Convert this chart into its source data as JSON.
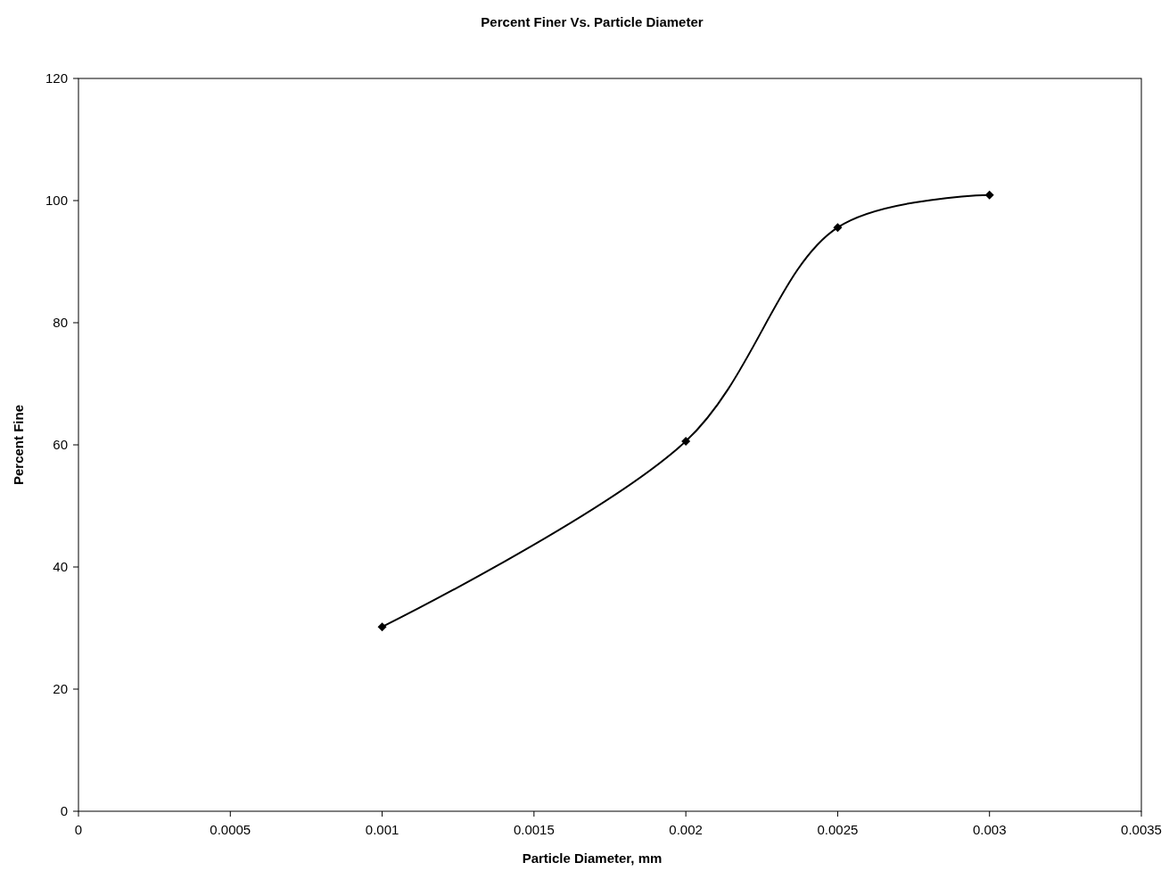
{
  "chart_data": {
    "type": "line",
    "title": "Percent Finer Vs. Particle Diameter",
    "xlabel": "Particle Diameter, mm",
    "ylabel": "Percent Fine",
    "x": [
      0.001,
      0.002,
      0.0025,
      0.003
    ],
    "series": [
      {
        "color": "#000000",
        "values": [
          30.2,
          60.6,
          95.6,
          100.9
        ]
      }
    ],
    "xlim": [
      0,
      0.0035
    ],
    "xticks": [
      0,
      0.0005,
      0.001,
      0.0015,
      0.002,
      0.0025,
      0.003,
      0.0035
    ],
    "ylim": [
      0,
      120
    ],
    "yticks": [
      0,
      20,
      40,
      60,
      80,
      100,
      120
    ],
    "grid": false,
    "marker": "diamond",
    "line_style": "solid"
  }
}
